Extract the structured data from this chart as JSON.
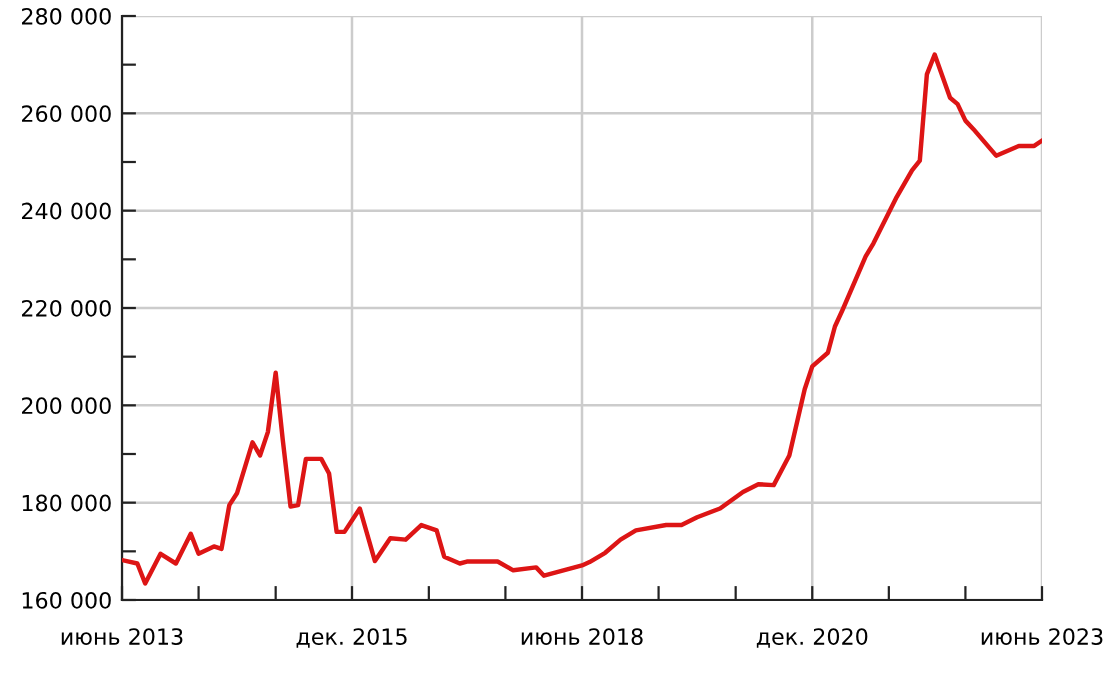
{
  "chart_data": {
    "type": "line",
    "color": "#dd1515",
    "grid": true,
    "marker": "none",
    "line_style": "solid",
    "x": [
      "2013-06",
      "2013-08",
      "2013-09",
      "2013-11",
      "2014-01",
      "2014-03",
      "2014-04",
      "2014-06",
      "2014-07",
      "2014-08",
      "2014-09",
      "2014-11",
      "2014-12",
      "2015-01",
      "2015-02",
      "2015-03",
      "2015-04",
      "2015-05",
      "2015-06",
      "2015-08",
      "2015-09",
      "2015-10",
      "2015-11",
      "2016-01",
      "2016-03",
      "2016-05",
      "2016-07",
      "2016-09",
      "2016-11",
      "2016-12",
      "2017-02",
      "2017-03",
      "2017-07",
      "2017-09",
      "2017-12",
      "2018-01",
      "2018-06",
      "2018-07",
      "2018-09",
      "2018-11",
      "2019-01",
      "2019-05",
      "2019-07",
      "2019-09",
      "2019-12",
      "2020-03",
      "2020-05",
      "2020-07",
      "2020-09",
      "2020-11",
      "2020-12",
      "2021-02",
      "2021-03",
      "2021-04",
      "2021-07",
      "2021-08",
      "2021-11",
      "2022-01",
      "2022-02",
      "2022-03",
      "2022-04",
      "2022-06",
      "2022-07",
      "2022-08",
      "2022-09",
      "2022-12",
      "2023-03",
      "2023-05",
      "2023-06"
    ],
    "values": [
      168200,
      167500,
      163400,
      169500,
      167500,
      173600,
      169500,
      171000,
      170500,
      179500,
      182000,
      192400,
      189700,
      194500,
      206700,
      193000,
      179200,
      179500,
      189000,
      189000,
      186000,
      174000,
      174000,
      178800,
      168000,
      172700,
      172400,
      175400,
      174300,
      168900,
      167500,
      167900,
      167900,
      166100,
      166700,
      165000,
      167100,
      167800,
      169700,
      172400,
      174300,
      175400,
      175400,
      177000,
      178800,
      182200,
      183800,
      183600,
      189700,
      203300,
      208000,
      210800,
      216200,
      219700,
      230600,
      233300,
      242800,
      248300,
      250300,
      268000,
      272100,
      263200,
      261900,
      258500,
      256800,
      251300,
      253300,
      253300,
      254400
    ],
    "xlim": [
      "2013-06",
      "2023-06"
    ],
    "xticks": [
      {
        "value": "2013-06",
        "label": "июнь 2013"
      },
      {
        "value": "2014-04",
        "label": null
      },
      {
        "value": "2015-02",
        "label": null
      },
      {
        "value": "2015-12",
        "label": "дек. 2015"
      },
      {
        "value": "2016-10",
        "label": null
      },
      {
        "value": "2017-08",
        "label": null
      },
      {
        "value": "2018-06",
        "label": "июнь 2018"
      },
      {
        "value": "2019-04",
        "label": null
      },
      {
        "value": "2020-02",
        "label": null
      },
      {
        "value": "2020-12",
        "label": "дек. 2020"
      },
      {
        "value": "2021-10",
        "label": null
      },
      {
        "value": "2022-08",
        "label": null
      },
      {
        "value": "2023-06",
        "label": "июнь 2023"
      }
    ],
    "ylim": [
      160000,
      280000
    ],
    "yticks": [
      {
        "value": 160000,
        "label": "160 000"
      },
      {
        "value": 170000,
        "label": null
      },
      {
        "value": 180000,
        "label": "180 000"
      },
      {
        "value": 190000,
        "label": null
      },
      {
        "value": 200000,
        "label": "200 000"
      },
      {
        "value": 210000,
        "label": null
      },
      {
        "value": 220000,
        "label": "220 000"
      },
      {
        "value": 230000,
        "label": null
      },
      {
        "value": 240000,
        "label": "240 000"
      },
      {
        "value": 250000,
        "label": null
      },
      {
        "value": 260000,
        "label": "260 000"
      },
      {
        "value": 270000,
        "label": null
      },
      {
        "value": 280000,
        "label": "280 000"
      }
    ]
  }
}
